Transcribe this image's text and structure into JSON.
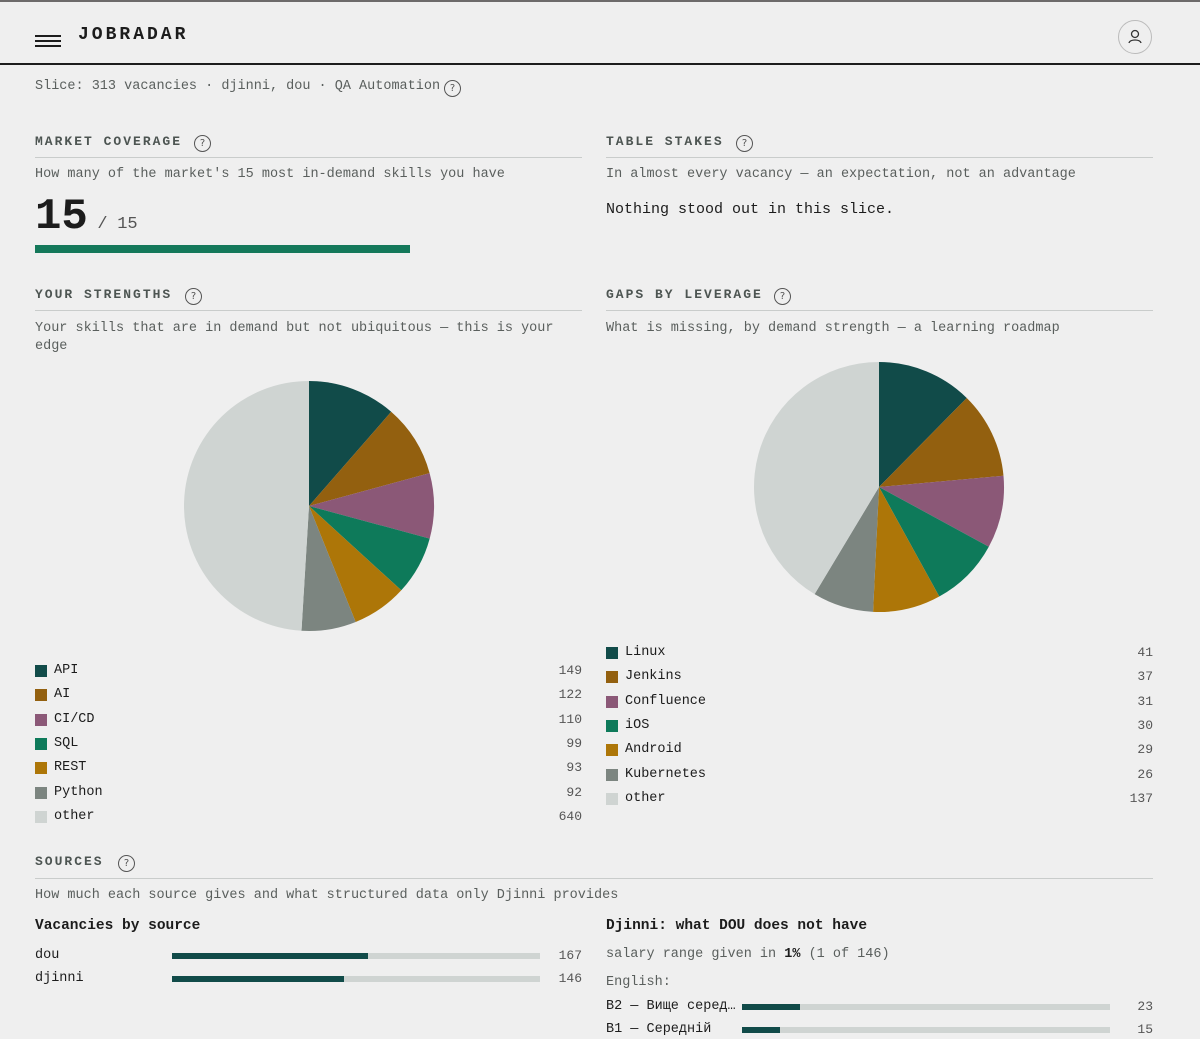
{
  "header": {
    "brand": "JOBRADAR"
  },
  "help_icon": "?",
  "slice": "Slice: 313 vacancies · djinni, dou · QA Automation",
  "market_coverage": {
    "title": "MARKET COVERAGE",
    "subtitle": "How many of the market's 15 most in-demand skills you have",
    "have": 15,
    "separator": "/",
    "total": 15
  },
  "table_stakes": {
    "title": "TABLE STAKES",
    "subtitle": "In almost every vacancy — an expectation, not an advantage",
    "message": "Nothing stood out in this slice."
  },
  "strengths": {
    "title": "YOUR STRENGTHS",
    "subtitle": "Your skills that are in demand but not ubiquitous — this is your edge",
    "chart": {
      "type": "pie",
      "categories": [
        "API",
        "AI",
        "CI/CD",
        "SQL",
        "REST",
        "Python",
        "other"
      ],
      "values": [
        149,
        122,
        110,
        99,
        93,
        92,
        640
      ],
      "colors": [
        "#114b49",
        "#93600f",
        "#8b5877",
        "#0e7a5a",
        "#ad7608",
        "#7c8580",
        "#cfd4d2"
      ]
    }
  },
  "gaps": {
    "title": "GAPS BY LEVERAGE",
    "subtitle": "What is missing, by demand strength — a learning roadmap",
    "chart": {
      "type": "pie",
      "categories": [
        "Linux",
        "Jenkins",
        "Confluence",
        "iOS",
        "Android",
        "Kubernetes",
        "other"
      ],
      "values": [
        41,
        37,
        31,
        30,
        29,
        26,
        137
      ],
      "colors": [
        "#114b49",
        "#93600f",
        "#8b5877",
        "#0e7a5a",
        "#ad7608",
        "#7c8580",
        "#cfd4d2"
      ]
    }
  },
  "sources": {
    "title": "SOURCES",
    "subtitle": "How much each source gives and what structured data only Djinni provides",
    "by_source": {
      "title": "Vacancies by source",
      "type": "bar",
      "categories": [
        "dou",
        "djinni"
      ],
      "values": [
        167,
        146
      ],
      "xlim": [
        0,
        313
      ],
      "color": "#114b49"
    },
    "djinni_only": {
      "title": "Djinni: what DOU does not have",
      "salary_prefix": "salary range given in",
      "salary_pct": "1%",
      "salary_suffix": "(1 of 146)",
      "english": {
        "title": "English:",
        "type": "bar",
        "categories": [
          "B2 — Вище серед…",
          "B1 — Середній"
        ],
        "values": [
          23,
          15
        ],
        "xlim": [
          0,
          146
        ],
        "color": "#114b49"
      }
    }
  }
}
